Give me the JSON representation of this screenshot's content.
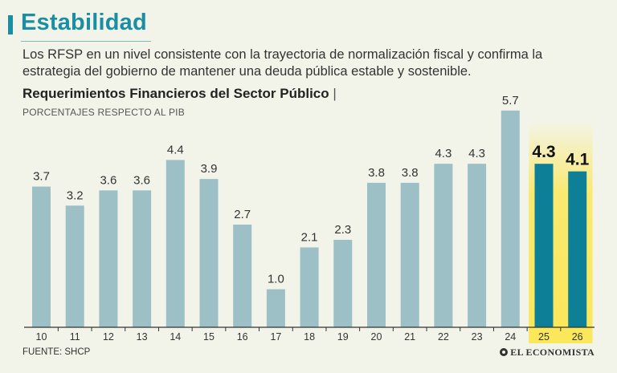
{
  "header": {
    "title": "Estabilidad",
    "description": "Los RFSP en un nivel consistente con la trayectoria de normalización fiscal y confirma la estrategia del gobierno de mantener una deuda pública estable y sostenible."
  },
  "colors": {
    "accent": "#1b8ea3",
    "bar_historic": "#9dbfc6",
    "bar_projection": "#0d8097",
    "highlight": "#fbe75a"
  },
  "chart_data": {
    "type": "bar",
    "title": "Requerimientos Financieros del Sector Público",
    "title_separator": "|",
    "ylabel": "PORCENTAJES RESPECTO AL PIB",
    "xlabel": "",
    "categories": [
      "10",
      "11",
      "12",
      "13",
      "14",
      "15",
      "16",
      "17",
      "18",
      "19",
      "20",
      "21",
      "22",
      "23",
      "24",
      "25",
      "26"
    ],
    "values": [
      3.7,
      3.2,
      3.6,
      3.6,
      4.4,
      3.9,
      2.7,
      1.0,
      2.1,
      2.3,
      3.8,
      3.8,
      4.3,
      4.3,
      5.7,
      4.3,
      4.1
    ],
    "labels": [
      "3.7",
      "3.2",
      "3.6",
      "3.6",
      "4.4",
      "3.9",
      "2.7",
      "1.0",
      "2.1",
      "2.3",
      "3.8",
      "3.8",
      "4.3",
      "4.3",
      "5.7",
      "4.3",
      "4.1"
    ],
    "highlighted": [
      "25",
      "26"
    ],
    "ylim": [
      0,
      6
    ],
    "grid": false
  },
  "footer": {
    "source": "FUENTE: SHCP",
    "logo": "EL ECONOMISTA"
  }
}
